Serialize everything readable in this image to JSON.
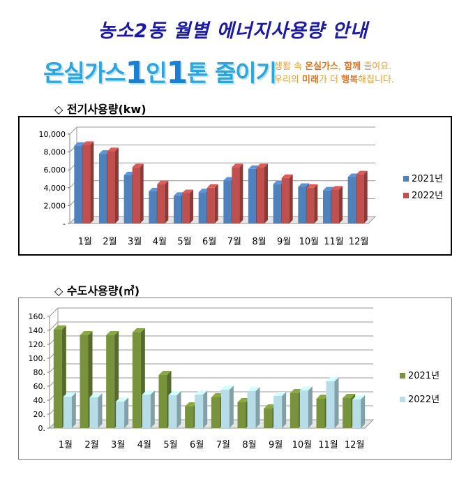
{
  "header": {
    "title": "농소2동 월별 에너지사용량 안내",
    "slogan_parts": [
      "온실가스",
      "1",
      "인",
      "1",
      "톤 줄이기"
    ],
    "tagline_line1": [
      "생활 속 ",
      "온실가스",
      ", ",
      "함께",
      " 줄여요."
    ],
    "tagline_line2": [
      "우리의 ",
      "미래",
      "가 더 ",
      "행복",
      "해집니다."
    ]
  },
  "colors": {
    "elec_2021": "#4f81bd",
    "elec_2022": "#c0504d",
    "water_2021": "#77933c",
    "water_2022": "#b7dee8"
  },
  "sections": {
    "electricity_title": "◇ 전기사용량(kw)",
    "water_title": "◇ 수도사용량(㎥)"
  },
  "chart_data": [
    {
      "type": "bar",
      "title": "◇ 전기사용량(kw)",
      "categories": [
        "1월",
        "2월",
        "3월",
        "4월",
        "5월",
        "6월",
        "7월",
        "8월",
        "9월",
        "10월",
        "11월",
        "12월"
      ],
      "series": [
        {
          "name": "2021년",
          "values": [
            8700,
            7800,
            5400,
            3600,
            3100,
            3500,
            4800,
            6100,
            4400,
            4100,
            3700,
            5200
          ]
        },
        {
          "name": "2022년",
          "values": [
            8800,
            8100,
            6300,
            4400,
            3400,
            4000,
            6300,
            6300,
            5100,
            4000,
            3800,
            5500
          ]
        }
      ],
      "ylim": [
        0,
        10000
      ],
      "yticks": [
        0,
        2000,
        4000,
        6000,
        8000,
        10000
      ],
      "ytick_labels": [
        "-",
        "2,000",
        "4,000",
        "6,000",
        "8,000",
        "10,000"
      ],
      "grid": true,
      "legend": "right"
    },
    {
      "type": "bar",
      "title": "◇ 수도사용량(㎥)",
      "categories": [
        "1월",
        "2월",
        "3월",
        "4월",
        "5월",
        "6월",
        "7월",
        "8월",
        "9월",
        "10월",
        "11월",
        "12월"
      ],
      "series": [
        {
          "name": "2021년",
          "values": [
            141,
            133,
            133,
            137,
            76,
            31,
            44,
            37,
            28,
            50,
            42,
            43
          ]
        },
        {
          "name": "2022년",
          "values": [
            45,
            44,
            38,
            48,
            47,
            48,
            55,
            53,
            46,
            54,
            67,
            41
          ]
        }
      ],
      "ylim": [
        0,
        160
      ],
      "yticks": [
        0,
        20,
        40,
        60,
        80,
        100,
        120,
        140,
        160
      ],
      "ytick_labels": [
        "0.",
        "20.",
        "40.",
        "60.",
        "80.",
        "100.",
        "120.",
        "140.",
        "160."
      ],
      "grid": true,
      "legend": "right"
    }
  ]
}
